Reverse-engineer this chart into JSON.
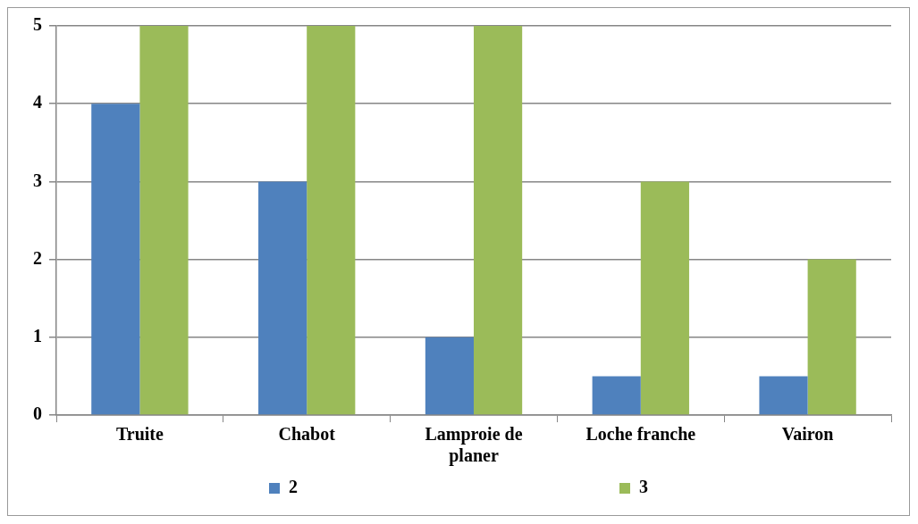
{
  "chart_data": {
    "type": "bar",
    "categories": [
      "Truite",
      "Chabot",
      "Lamproie de planer",
      "Loche franche",
      "Vairon"
    ],
    "series": [
      {
        "name": "2",
        "color": "#4f81bd",
        "values": [
          4,
          3,
          1,
          0.5,
          0.5
        ]
      },
      {
        "name": "3",
        "color": "#9bbb59",
        "values": [
          5,
          5,
          5,
          3,
          2
        ]
      }
    ],
    "ylim": [
      0,
      5
    ],
    "yticks": [
      0,
      1,
      2,
      3,
      4,
      5
    ],
    "grid": "y",
    "legend": "bottom"
  }
}
